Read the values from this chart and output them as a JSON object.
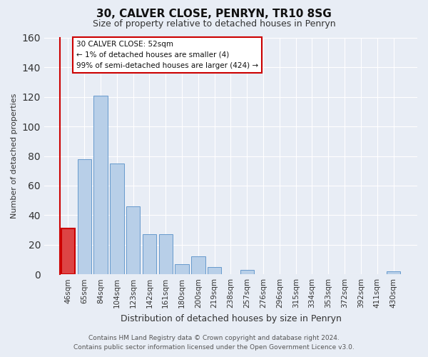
{
  "title": "30, CALVER CLOSE, PENRYN, TR10 8SG",
  "subtitle": "Size of property relative to detached houses in Penryn",
  "xlabel": "Distribution of detached houses by size in Penryn",
  "ylabel": "Number of detached properties",
  "footer_line1": "Contains HM Land Registry data © Crown copyright and database right 2024.",
  "footer_line2": "Contains public sector information licensed under the Open Government Licence v3.0.",
  "categories": [
    "46sqm",
    "65sqm",
    "84sqm",
    "104sqm",
    "123sqm",
    "142sqm",
    "161sqm",
    "180sqm",
    "200sqm",
    "219sqm",
    "238sqm",
    "257sqm",
    "276sqm",
    "296sqm",
    "315sqm",
    "334sqm",
    "353sqm",
    "372sqm",
    "392sqm",
    "411sqm",
    "430sqm"
  ],
  "values": [
    31,
    78,
    121,
    75,
    46,
    27,
    27,
    7,
    12,
    5,
    0,
    3,
    0,
    0,
    0,
    0,
    0,
    0,
    0,
    0,
    2
  ],
  "bar_color": "#b8cfe8",
  "bar_edge_color": "#6699cc",
  "highlight_bar_index": 0,
  "highlight_color": "#cc0000",
  "ylim": [
    0,
    160
  ],
  "yticks": [
    0,
    20,
    40,
    60,
    80,
    100,
    120,
    140,
    160
  ],
  "annotation_title": "30 CALVER CLOSE: 52sqm",
  "annotation_line1": "← 1% of detached houses are smaller (4)",
  "annotation_line2": "99% of semi-detached houses are larger (424) →",
  "bg_color": "#e8edf5",
  "plot_bg_color": "#e8edf5",
  "grid_color": "#ffffff",
  "title_fontsize": 11,
  "subtitle_fontsize": 9,
  "xlabel_fontsize": 9,
  "ylabel_fontsize": 8,
  "tick_fontsize": 7.5,
  "footer_fontsize": 6.5
}
